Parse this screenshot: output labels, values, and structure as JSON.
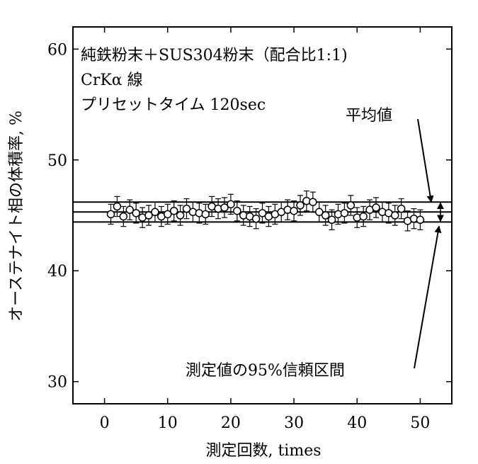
{
  "chart_data": {
    "type": "scatter",
    "title_lines": [
      "純鉄粉末＋SUS304粉末（配合比1:1)",
      "CrKα 線",
      "プリセットタイム 120sec"
    ],
    "xlabel": "測定回数, times",
    "ylabel": "オーステナイト相の体積率, %",
    "xlim": [
      -5,
      55
    ],
    "ylim": [
      28,
      62
    ],
    "x_ticks": [
      0,
      10,
      20,
      30,
      40,
      50
    ],
    "y_ticks": [
      30,
      40,
      50,
      60
    ],
    "grid": false,
    "mean": 45.3,
    "ci_upper": 46.2,
    "ci_lower": 44.4,
    "mean_label": "平均値",
    "ci_label": "測定値の95%信頼区間",
    "series": [
      {
        "marker": "open-circle",
        "error": 0.9,
        "x": [
          1,
          2,
          3,
          4,
          5,
          6,
          7,
          8,
          9,
          10,
          11,
          12,
          13,
          14,
          15,
          16,
          17,
          18,
          19,
          20,
          21,
          22,
          23,
          24,
          25,
          26,
          27,
          28,
          29,
          30,
          31,
          32,
          33,
          34,
          35,
          36,
          37,
          38,
          39,
          40,
          41,
          42,
          43,
          44,
          45,
          46,
          47,
          48,
          49,
          50
        ],
        "y": [
          45.1,
          45.8,
          44.9,
          45.5,
          45.2,
          44.8,
          45.0,
          45.3,
          44.9,
          45.1,
          45.4,
          45.0,
          45.6,
          45.3,
          45.2,
          45.1,
          45.8,
          45.6,
          45.7,
          46.0,
          45.4,
          45.0,
          44.9,
          44.7,
          45.2,
          44.9,
          45.1,
          45.3,
          45.5,
          45.4,
          45.9,
          46.3,
          46.2,
          45.3,
          45.0,
          44.6,
          45.1,
          45.2,
          45.9,
          44.8,
          44.9,
          45.5,
          45.7,
          45.3,
          45.2,
          45.0,
          45.6,
          44.5,
          44.7,
          44.6
        ]
      }
    ]
  }
}
